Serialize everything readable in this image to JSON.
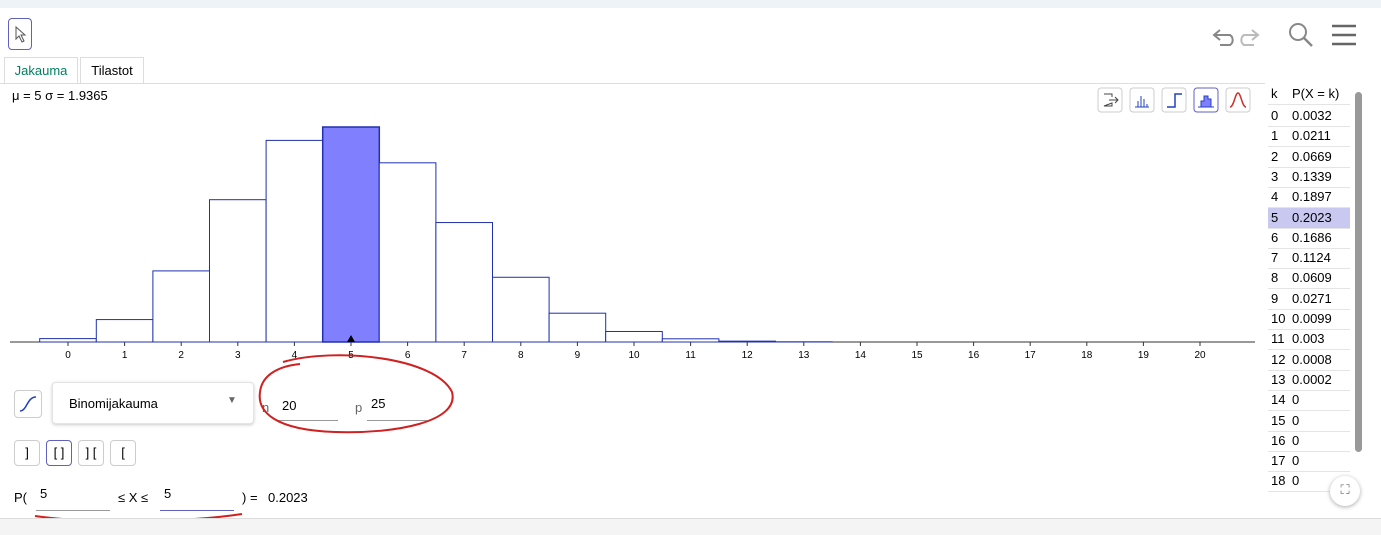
{
  "tabs": [
    "Jakauma",
    "Tilastot"
  ],
  "stats": "μ = 5 σ = 1.9365",
  "distribution": "Binomijakauma",
  "params": [
    {
      "label": "n",
      "value": "20"
    },
    {
      "label": "p",
      "value": "25"
    }
  ],
  "chart": {
    "type": "bar",
    "xticks": [
      0,
      1,
      2,
      3,
      4,
      5,
      6,
      7,
      8,
      9,
      10,
      11,
      12,
      13,
      14,
      15,
      16,
      17,
      18,
      19,
      20
    ],
    "color": "#8080ff"
  },
  "table": {
    "header": [
      "k",
      "P(X = k)"
    ],
    "rows": [
      [
        0,
        0.0032
      ],
      [
        1,
        0.0211
      ],
      [
        2,
        0.0669
      ],
      [
        3,
        0.1339
      ],
      [
        4,
        0.1897
      ],
      [
        5,
        0.2023
      ],
      [
        6,
        0.1686
      ],
      [
        7,
        0.1124
      ],
      [
        8,
        0.0609
      ],
      [
        9,
        0.0271
      ],
      [
        10,
        0.0099
      ],
      [
        11,
        0.003
      ],
      [
        12,
        0.0008
      ],
      [
        13,
        0.0002
      ],
      [
        14,
        0
      ],
      [
        15,
        0
      ],
      [
        16,
        0
      ],
      [
        17,
        0
      ],
      [
        18,
        0
      ]
    ]
  },
  "probability": {
    "prefix": "P(",
    "lower": 5,
    "middle": "≤ X ≤",
    "upper": 5,
    "suffix": ") =",
    "result": "0.2023"
  }
}
